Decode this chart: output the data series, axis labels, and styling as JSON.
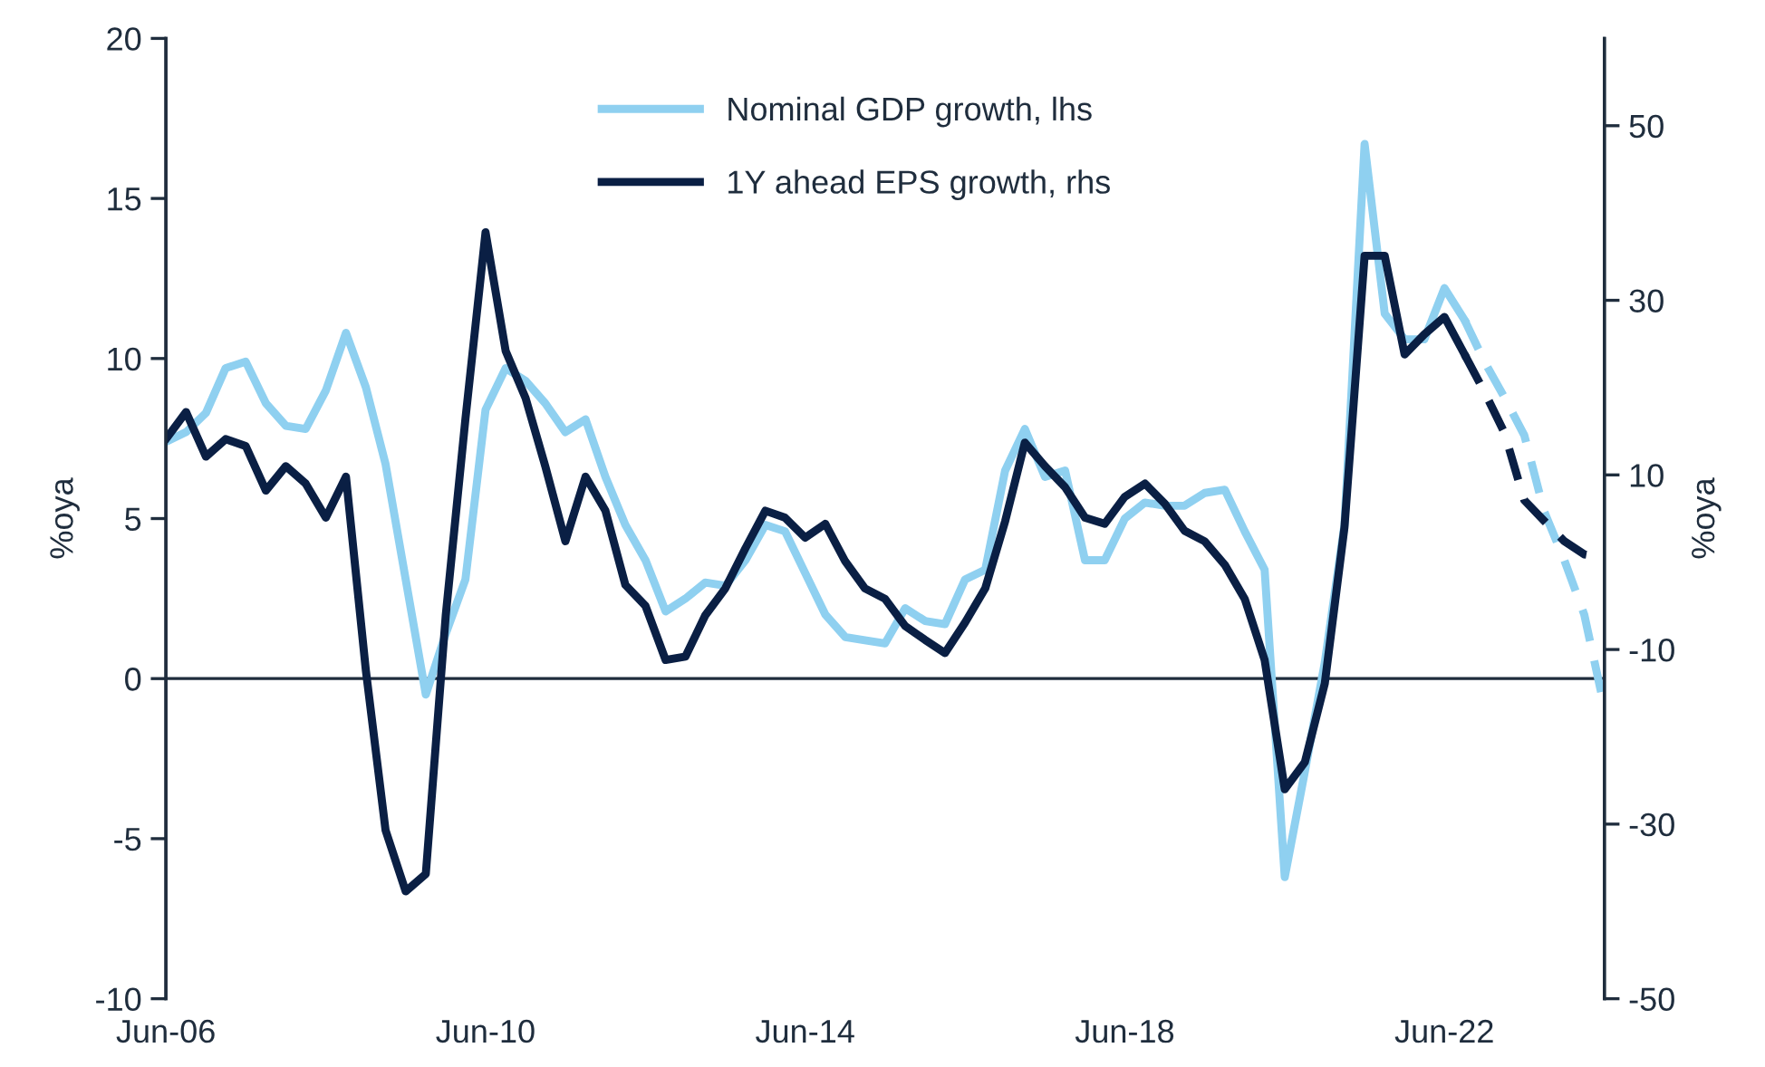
{
  "chart_data": {
    "type": "line",
    "ylabel": "%oya",
    "y2label": "%oya",
    "series": [
      {
        "name": "Nominal GDP growth, lhs",
        "color": "#8fd0f0",
        "line_style": "solid",
        "x": [
          "2006-06",
          "2006-09",
          "2006-12",
          "2007-03",
          "2007-06",
          "2007-09",
          "2007-12",
          "2008-03",
          "2008-06",
          "2008-09",
          "2008-12",
          "2009-03",
          "2009-06",
          "2009-09",
          "2009-12",
          "2010-03",
          "2010-06",
          "2010-09",
          "2010-12",
          "2011-03",
          "2011-06",
          "2011-09",
          "2011-12",
          "2012-03",
          "2012-06",
          "2012-09",
          "2012-12",
          "2013-03",
          "2013-06",
          "2013-09",
          "2013-12",
          "2014-03",
          "2014-06",
          "2014-09",
          "2014-12",
          "2015-03",
          "2015-06",
          "2015-09",
          "2015-12",
          "2016-03",
          "2016-06",
          "2016-09",
          "2016-12",
          "2017-03",
          "2017-06",
          "2017-09",
          "2017-12",
          "2018-03",
          "2018-06",
          "2018-09",
          "2018-12",
          "2019-03",
          "2019-06",
          "2019-09",
          "2019-12",
          "2020-03",
          "2020-06",
          "2020-09",
          "2020-12",
          "2021-03",
          "2021-06",
          "2021-09",
          "2021-12",
          "2022-03",
          "2022-06",
          "2022-09"
        ],
        "values": [
          7.4,
          7.7,
          8.3,
          9.7,
          9.9,
          8.6,
          7.9,
          7.8,
          9.0,
          10.8,
          9.1,
          6.7,
          3.1,
          -0.5,
          1.4,
          3.1,
          8.4,
          9.7,
          9.3,
          8.6,
          7.7,
          8.1,
          6.3,
          4.8,
          3.7,
          2.1,
          2.5,
          3.0,
          2.9,
          3.7,
          4.8,
          4.6,
          3.3,
          2.0,
          1.3,
          1.2,
          1.1,
          2.2,
          1.8,
          1.7,
          3.1,
          3.4,
          6.5,
          7.8,
          6.3,
          6.5,
          3.7,
          3.7,
          5.0,
          5.5,
          5.4,
          5.4,
          5.8,
          5.9,
          4.6,
          3.4,
          -6.2,
          -2.9,
          0.5,
          4.8,
          16.7,
          11.4,
          10.6,
          10.6,
          12.2,
          11.2
        ]
      },
      {
        "color": "#8fd0f0",
        "line_style": "dashed",
        "x": [
          "2022-09",
          "2022-12",
          "2023-03",
          "2023-06",
          "2023-09",
          "2023-12",
          "2024-03",
          "2024-06"
        ],
        "values": [
          11.2,
          9.9,
          8.8,
          7.6,
          5.2,
          3.7,
          2.0,
          -0.9
        ]
      },
      {
        "name": "1Y ahead EPS growth, rhs",
        "color": "#0a1f44",
        "axis": "y2",
        "line_style": "solid",
        "x": [
          "2006-06",
          "2006-09",
          "2006-12",
          "2007-03",
          "2007-06",
          "2007-09",
          "2007-12",
          "2008-03",
          "2008-06",
          "2008-09",
          "2008-12",
          "2009-03",
          "2009-06",
          "2009-09",
          "2009-12",
          "2010-03",
          "2010-06",
          "2010-09",
          "2010-12",
          "2011-03",
          "2011-06",
          "2011-09",
          "2011-12",
          "2012-03",
          "2012-06",
          "2012-09",
          "2012-12",
          "2013-03",
          "2013-06",
          "2013-09",
          "2013-12",
          "2014-03",
          "2014-06",
          "2014-09",
          "2014-12",
          "2015-03",
          "2015-06",
          "2015-09",
          "2015-12",
          "2016-03",
          "2016-06",
          "2016-09",
          "2016-12",
          "2017-03",
          "2017-06",
          "2017-09",
          "2017-12",
          "2018-03",
          "2018-06",
          "2018-09",
          "2018-12",
          "2019-03",
          "2019-06",
          "2019-09",
          "2019-12",
          "2020-03",
          "2020-06",
          "2020-09",
          "2020-12",
          "2021-03",
          "2021-06",
          "2021-09",
          "2021-12",
          "2022-03",
          "2022-06",
          "2022-09"
        ],
        "values": [
          14.1,
          17.2,
          12.1,
          14.1,
          13.3,
          8.2,
          11.0,
          9.0,
          5.1,
          9.8,
          -12.4,
          -30.7,
          -37.7,
          -35.7,
          -6.1,
          16.4,
          37.8,
          24.2,
          18.8,
          11.0,
          2.4,
          9.8,
          5.9,
          -2.6,
          -5.0,
          -11.2,
          -10.8,
          -6.1,
          -3.0,
          1.6,
          5.9,
          5.1,
          2.8,
          4.4,
          0.1,
          -3.0,
          -4.2,
          -7.3,
          -8.9,
          -10.4,
          -6.9,
          -3.0,
          4.7,
          13.7,
          11.0,
          8.6,
          5.1,
          4.4,
          7.5,
          9.0,
          6.7,
          3.6,
          2.4,
          -0.3,
          -4.2,
          -11.2,
          -26.0,
          -22.9,
          -13.9,
          4.0,
          35.1,
          35.1,
          23.8,
          26.1,
          28.1,
          23.8
        ]
      },
      {
        "color": "#0a1f44",
        "axis": "y2",
        "line_style": "dashed",
        "x": [
          "2022-09",
          "2022-12",
          "2023-03",
          "2023-06",
          "2023-09",
          "2023-12",
          "2024-03",
          "2024-06"
        ],
        "values": [
          23.8,
          19.5,
          14.9,
          7.1,
          4.7,
          2.4,
          0.9,
          0.5
        ]
      }
    ],
    "xlim": [
      "2006-06",
      "2024-06"
    ],
    "xticks": [
      {
        "value": "2006-06",
        "label": "Jun-06"
      },
      {
        "value": "2010-06",
        "label": "Jun-10"
      },
      {
        "value": "2014-06",
        "label": "Jun-14"
      },
      {
        "value": "2018-06",
        "label": "Jun-18"
      },
      {
        "value": "2022-06",
        "label": "Jun-22"
      }
    ],
    "ylim": [
      -10,
      20
    ],
    "yticks": [
      -10,
      -5,
      0,
      5,
      10,
      15,
      20
    ],
    "y2lim": [
      -50,
      60
    ],
    "y2ticks": [
      -50,
      -30,
      -10,
      10,
      30,
      50
    ],
    "ref_lines": [
      {
        "axis": "y",
        "value": 0,
        "color": "#1f2d3d"
      }
    ],
    "grid": false,
    "legend": "top",
    "marker": "none"
  }
}
